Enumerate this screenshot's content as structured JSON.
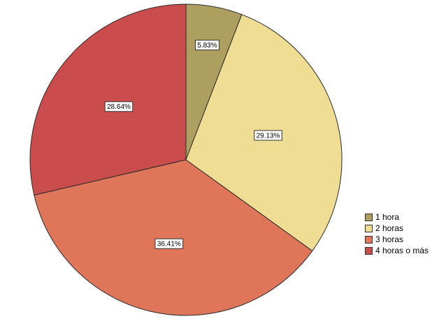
{
  "chart_data": {
    "type": "pie",
    "title": "",
    "start": "top",
    "direction": "clockwise",
    "legend_position": "right",
    "slices": [
      {
        "label": "1 hora",
        "value": 5.83,
        "display": "5.83%",
        "color": "#ad9f5f"
      },
      {
        "label": "2 horas",
        "value": 29.13,
        "display": "29.13%",
        "color": "#efdd93"
      },
      {
        "label": "3 horas",
        "value": 36.41,
        "display": "36.41%",
        "color": "#df765a"
      },
      {
        "label": "4 horas o más",
        "value": 28.64,
        "display": "28.64%",
        "color": "#cb4c4c"
      }
    ]
  }
}
